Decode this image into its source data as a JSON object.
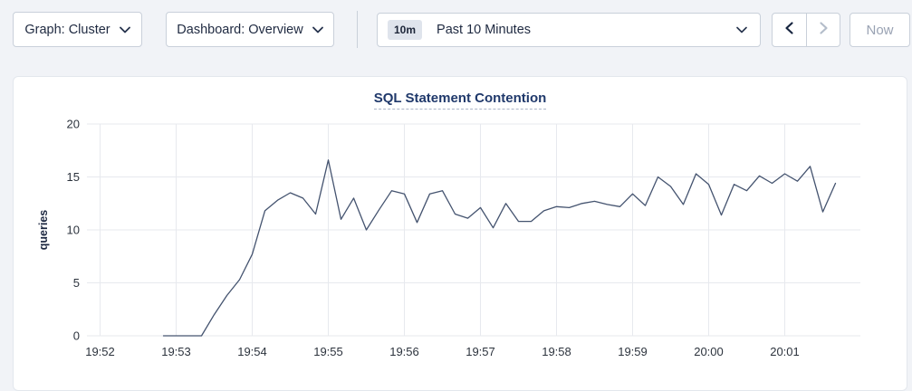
{
  "toolbar": {
    "graph_dropdown_label": "Graph: Cluster",
    "dashboard_dropdown_label": "Dashboard: Overview",
    "time_window_badge": "10m",
    "time_window_label": "Past 10 Minutes",
    "now_button_label": "Now",
    "icons": {
      "graph_dropdown": "chevron-down",
      "dashboard_dropdown": "chevron-down",
      "time_range": "chevron-down",
      "prev": "chevron-left",
      "next": "chevron-right"
    },
    "disabled_buttons": [
      "next",
      "now"
    ]
  },
  "colors": {
    "page_background": "#f1f3f7",
    "card_background": "#ffffff",
    "border": "#c9d0da",
    "title": "#20396b",
    "line": "#44536f",
    "grid": "#e7e9ee",
    "disabled_text": "#99a2b3"
  },
  "chart_data": {
    "type": "line",
    "title": "SQL Statement Contention",
    "ylabel": "queries",
    "xlabel": "",
    "ylim": [
      0,
      20
    ],
    "y_ticks": [
      0,
      5,
      10,
      15,
      20
    ],
    "x_ticks": [
      "19:52",
      "19:53",
      "19:54",
      "19:55",
      "19:56",
      "19:57",
      "19:58",
      "19:59",
      "20:00",
      "20:01"
    ],
    "grid": true,
    "legend_position": "none",
    "series": [
      {
        "name": "queries",
        "color": "#44536f",
        "x_times": [
          "19:52:50",
          "19:53:00",
          "19:53:10",
          "19:53:20",
          "19:53:30",
          "19:53:40",
          "19:53:50",
          "19:54:00",
          "19:54:10",
          "19:54:20",
          "19:54:30",
          "19:54:40",
          "19:54:50",
          "19:55:00",
          "19:55:10",
          "19:55:20",
          "19:55:30",
          "19:55:40",
          "19:55:50",
          "19:56:00",
          "19:56:10",
          "19:56:20",
          "19:56:30",
          "19:56:40",
          "19:56:50",
          "19:57:00",
          "19:57:10",
          "19:57:20",
          "19:57:30",
          "19:57:40",
          "19:57:50",
          "19:58:00",
          "19:58:10",
          "19:58:20",
          "19:58:30",
          "19:58:40",
          "19:58:50",
          "19:59:00",
          "19:59:10",
          "19:59:20",
          "19:59:30",
          "19:59:40",
          "19:59:50",
          "20:00:00",
          "20:00:10",
          "20:00:20",
          "20:00:30",
          "20:00:40",
          "20:00:50",
          "20:01:00",
          "20:01:10",
          "20:01:20",
          "20:01:30",
          "20:01:40"
        ],
        "values": [
          0,
          0,
          0,
          0,
          2,
          3.8,
          5.3,
          7.7,
          11.8,
          12.8,
          13.5,
          13,
          11.5,
          16.6,
          11,
          13,
          10,
          11.9,
          13.7,
          13.4,
          10.7,
          13.4,
          13.7,
          11.5,
          11.1,
          12.1,
          10.2,
          12.5,
          10.8,
          10.8,
          11.8,
          12.2,
          12.1,
          12.5,
          12.7,
          12.4,
          12.2,
          13.4,
          12.3,
          15,
          14.1,
          12.4,
          15.3,
          14.3,
          11.4,
          14.3,
          13.7,
          15.1,
          14.4,
          15.3,
          14.6,
          16,
          11.7,
          14.4
        ]
      }
    ]
  }
}
